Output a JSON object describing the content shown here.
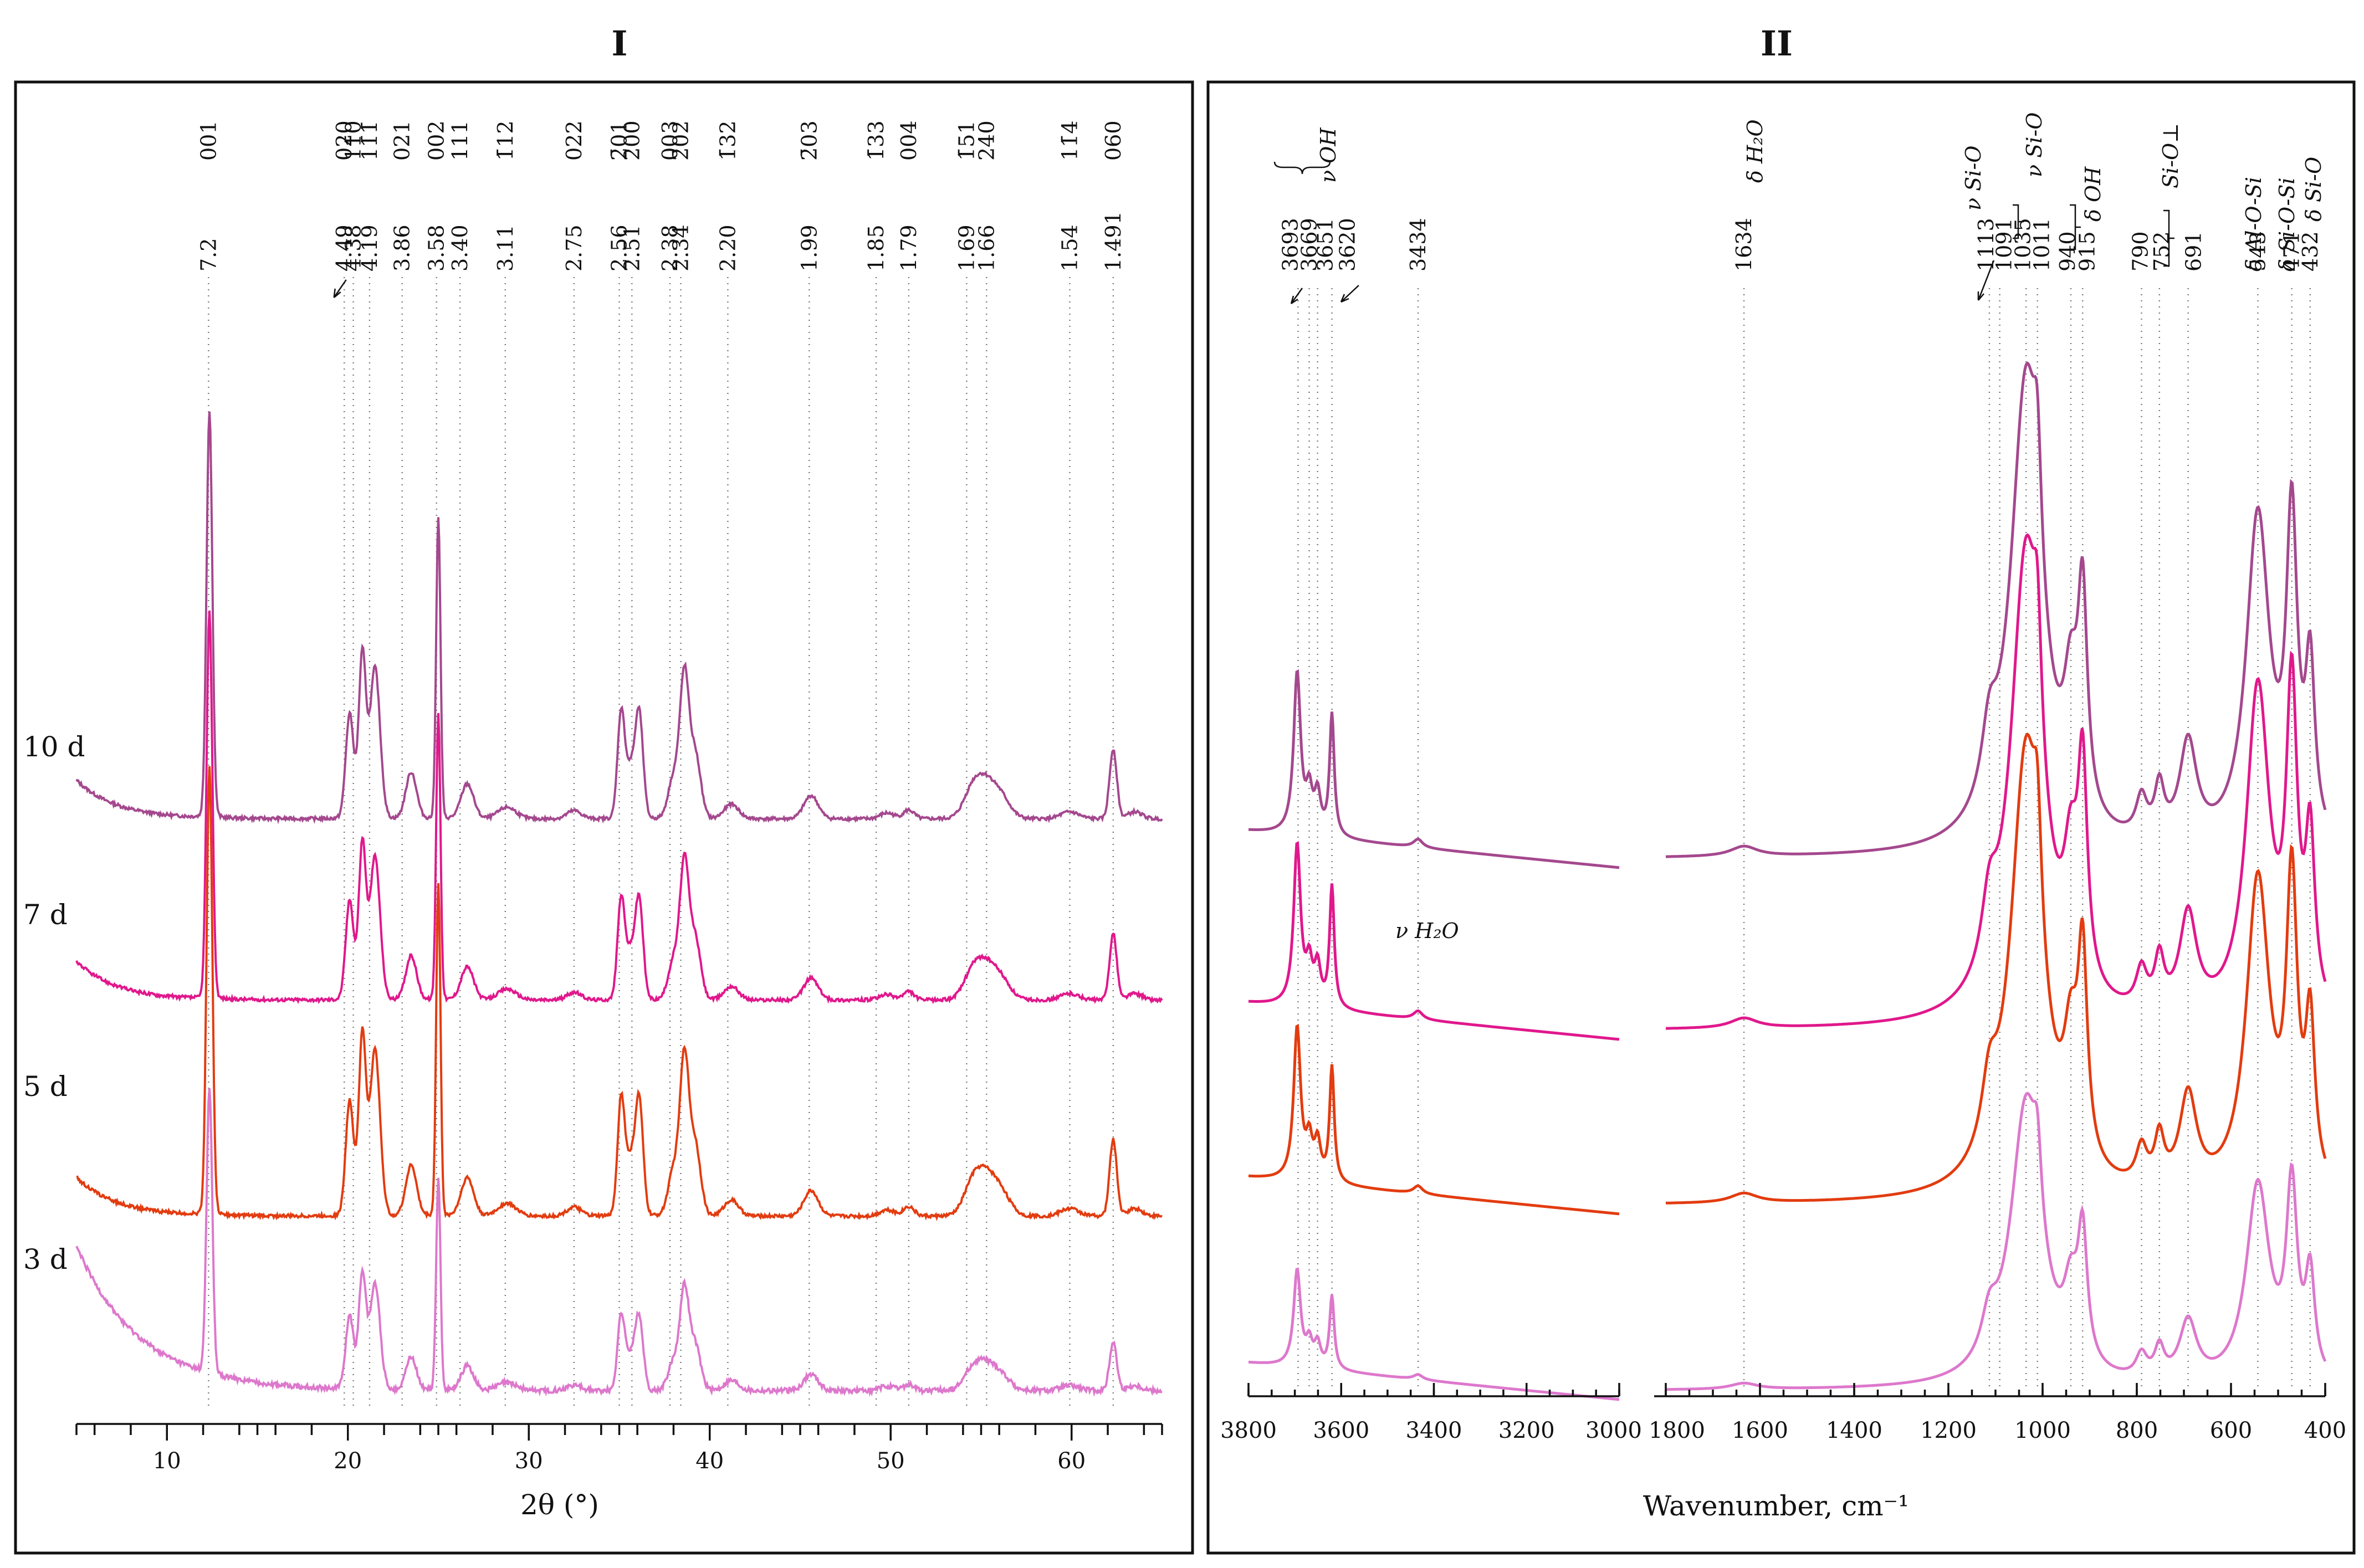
{
  "chart_data": [
    {
      "panel": "I",
      "type": "line",
      "xlabel": "2θ (°)",
      "xlim": [
        5,
        65
      ],
      "xticks": [
        10,
        20,
        30,
        40,
        50,
        60
      ],
      "sample_labels": [
        "10 d",
        "7 d",
        "5 d",
        "3 d"
      ],
      "series": [
        {
          "name": "10 d",
          "color": "#a4488e"
        },
        {
          "name": "7 d",
          "color": "#e0188c"
        },
        {
          "name": "5 d",
          "color": "#e23c10"
        },
        {
          "name": "3 d",
          "color": "#dd78cc"
        }
      ],
      "reflections": [
        {
          "hkl": "001",
          "d": "7.2",
          "two_theta": 12.3
        },
        {
          "hkl": "020",
          "d": "4.49",
          "two_theta": 19.8
        },
        {
          "hkl": "11̄0",
          "d": "4.38",
          "two_theta": 20.3
        },
        {
          "hkl": "11̄1̄",
          "d": "4.19",
          "two_theta": 21.2
        },
        {
          "hkl": "021",
          "d": "3.86",
          "two_theta": 23.0
        },
        {
          "hkl": "002",
          "d": "3.58",
          "two_theta": 24.9
        },
        {
          "hkl": "111",
          "d": "3.40",
          "two_theta": 26.2
        },
        {
          "hkl": "1̄12",
          "d": "3.11",
          "two_theta": 28.7
        },
        {
          "hkl": "022",
          "d": "2.75",
          "two_theta": 32.5
        },
        {
          "hkl": "2̄01",
          "d": "2.56",
          "two_theta": 35.0
        },
        {
          "hkl": "200",
          "d": "2.51",
          "two_theta": 35.7
        },
        {
          "hkl": "003",
          "d": "2.38",
          "two_theta": 37.8
        },
        {
          "hkl": "2̄02",
          "d": "2.34",
          "two_theta": 38.4
        },
        {
          "hkl": "1̄32",
          "d": "2.20",
          "two_theta": 41.0
        },
        {
          "hkl": "2̄03",
          "d": "1.99",
          "two_theta": 45.5
        },
        {
          "hkl": "1̄33",
          "d": "1.85",
          "two_theta": 49.2
        },
        {
          "hkl": "004",
          "d": "1.79",
          "two_theta": 51.0
        },
        {
          "hkl": "1̄51",
          "d": "1.69",
          "two_theta": 54.2
        },
        {
          "hkl": "240",
          "d": "1.66",
          "two_theta": 55.3
        },
        {
          "hkl": "11̄4",
          "d": "1.54",
          "two_theta": 59.9
        },
        {
          "hkl": "060",
          "d": "1.491",
          "two_theta": 62.3
        }
      ]
    },
    {
      "panel": "II",
      "type": "line",
      "xlabel": "Wavenumber, cm⁻¹",
      "segments": [
        {
          "xlim": [
            3800,
            3000
          ],
          "xticks": [
            3800,
            3600,
            3400,
            3200,
            3000
          ]
        },
        {
          "xlim": [
            1800,
            400
          ],
          "xticks": [
            1800,
            1600,
            1400,
            1200,
            1000,
            800,
            600,
            400
          ]
        }
      ],
      "series": [
        {
          "name": "10 d",
          "color": "#a4488e"
        },
        {
          "name": "7 d",
          "color": "#e0188c"
        },
        {
          "name": "5 d",
          "color": "#e23c10"
        },
        {
          "name": "3 d",
          "color": "#dd78cc"
        }
      ],
      "bands": [
        {
          "label": "3693",
          "wavenumber": 3693
        },
        {
          "label": "3669",
          "wavenumber": 3669
        },
        {
          "label": "3651",
          "wavenumber": 3651
        },
        {
          "label": "3620",
          "wavenumber": 3620
        },
        {
          "label": "3434",
          "wavenumber": 3434
        },
        {
          "label": "1634",
          "wavenumber": 1634
        },
        {
          "label": "1113",
          "wavenumber": 1113
        },
        {
          "label": "1091",
          "wavenumber": 1091
        },
        {
          "label": "1035",
          "wavenumber": 1035
        },
        {
          "label": "1011",
          "wavenumber": 1011
        },
        {
          "label": "940",
          "wavenumber": 940
        },
        {
          "label": "915",
          "wavenumber": 915
        },
        {
          "label": "790",
          "wavenumber": 790
        },
        {
          "label": "752",
          "wavenumber": 752
        },
        {
          "label": "691",
          "wavenumber": 691
        },
        {
          "label": "543",
          "wavenumber": 543
        },
        {
          "label": "471",
          "wavenumber": 471
        },
        {
          "label": "432",
          "wavenumber": 432
        }
      ],
      "assignments": {
        "voh": "ν OH",
        "vh2o": "ν H₂O",
        "dh2o": "δ H₂O",
        "vsio_a": "ν Si-O",
        "vsio_b": "ν Si-O",
        "doh": "δ OH",
        "siop": "Si-O⊥",
        "dalosi": "δ Al-O-Si",
        "dsiosi": "δ Si-O-Si",
        "dsio": "δ Si-O"
      }
    }
  ],
  "panels": {
    "left_title": "I",
    "right_title": "II"
  }
}
